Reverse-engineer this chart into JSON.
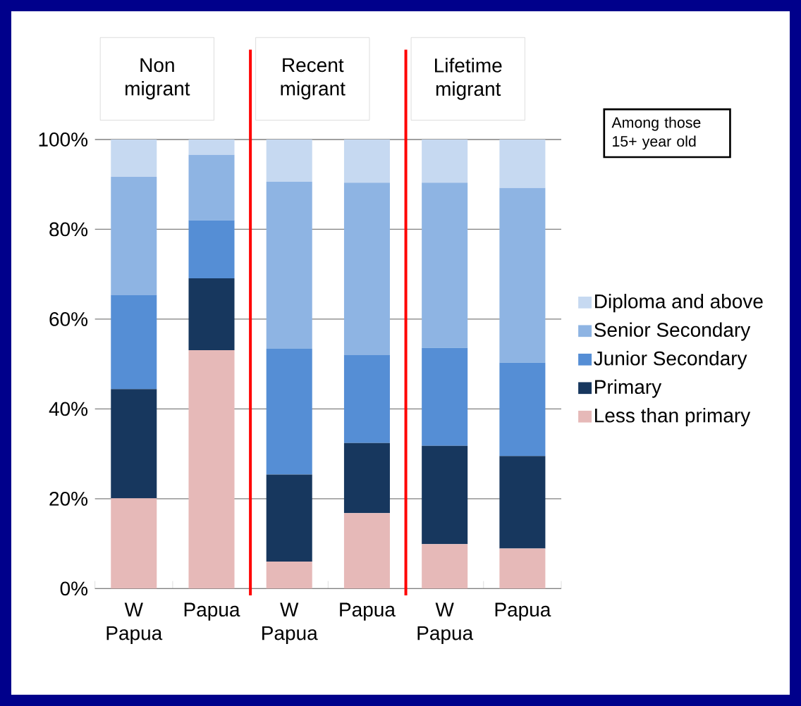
{
  "chart_data": {
    "type": "bar",
    "stacked": true,
    "categories": [
      "W Papua",
      "Papua",
      "W Papua",
      "Papua",
      "W Papua",
      "Papua"
    ],
    "series": [
      {
        "name": "Less than primary",
        "color": "#e6b9b8",
        "values": [
          20.1,
          53.1,
          6.0,
          16.8,
          9.9,
          8.9
        ]
      },
      {
        "name": "Primary",
        "color": "#17375e",
        "values": [
          24.3,
          16.0,
          19.4,
          15.6,
          21.9,
          20.6
        ]
      },
      {
        "name": "Junior Secondary",
        "color": "#558ed5",
        "values": [
          21.0,
          12.9,
          28.0,
          19.6,
          21.8,
          20.8
        ]
      },
      {
        "name": "Senior Secondary",
        "color": "#8eb4e3",
        "values": [
          26.3,
          14.6,
          37.2,
          38.4,
          36.8,
          38.9
        ]
      },
      {
        "name": "Diploma and above",
        "color": "#c6d9f1",
        "values": [
          8.3,
          3.4,
          9.4,
          9.6,
          9.6,
          10.8
        ]
      }
    ],
    "ylim": [
      0,
      100
    ],
    "yticks": [
      {
        "value": 0,
        "label": "0%"
      },
      {
        "value": 20,
        "label": "20%"
      },
      {
        "value": 40,
        "label": "40%"
      },
      {
        "value": 60,
        "label": "60%"
      },
      {
        "value": 80,
        "label": "80%"
      },
      {
        "value": 100,
        "label": "100%"
      }
    ],
    "grid": "y",
    "legend": "right",
    "annotations": [
      "Non migrant",
      "Recent migrant",
      "Lifetime migrant",
      "Among those 15+ year old"
    ]
  }
}
